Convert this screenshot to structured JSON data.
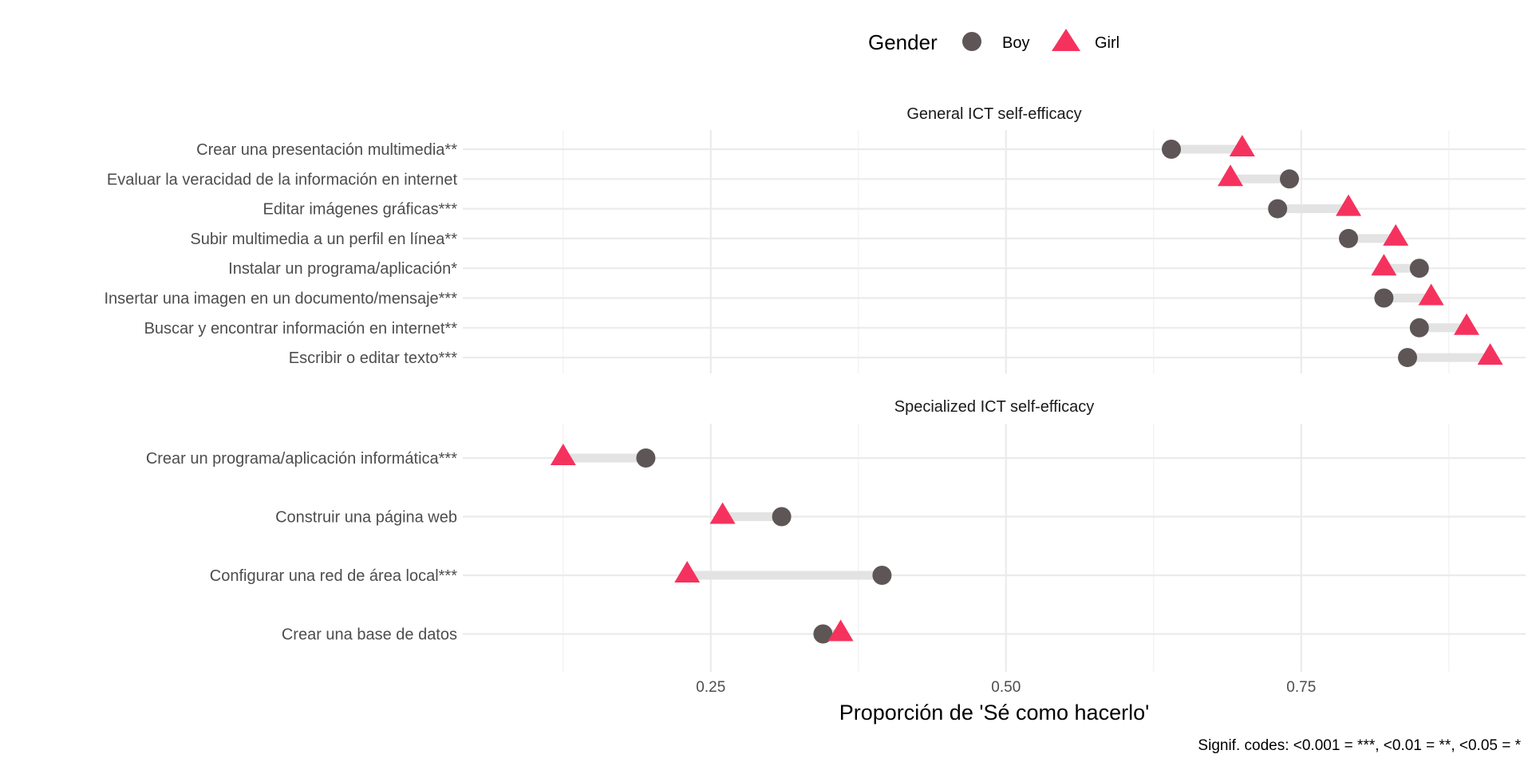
{
  "chart_data": {
    "type": "dumbbell",
    "xlabel": "Proporción de 'Sé como hacerlo'",
    "xticks": [
      0.25,
      0.5,
      0.75
    ],
    "xtick_labels": [
      "0.25",
      "0.50",
      "0.75"
    ],
    "xlim": [
      0.04,
      0.94
    ],
    "grid": true,
    "legend": {
      "title": "Gender",
      "position": "top",
      "entries": [
        {
          "name": "Boy",
          "shape": "circle",
          "color": "#5e5656"
        },
        {
          "name": "Girl",
          "shape": "triangle",
          "color": "#f5325e"
        }
      ]
    },
    "caption": "Signif. codes: <0.001 = ***, <0.01 = **, <0.05 = *",
    "panels": [
      {
        "title": "General ICT self-efficacy",
        "items": [
          {
            "label": "Crear una presentación multimedia**",
            "boy": 0.64,
            "girl": 0.7
          },
          {
            "label": "Evaluar la veracidad de la información en internet",
            "boy": 0.74,
            "girl": 0.69
          },
          {
            "label": "Editar imágenes gráficas***",
            "boy": 0.73,
            "girl": 0.79
          },
          {
            "label": "Subir multimedia a un perfil en línea**",
            "boy": 0.79,
            "girl": 0.83
          },
          {
            "label": "Instalar un programa/aplicación*",
            "boy": 0.85,
            "girl": 0.82
          },
          {
            "label": "Insertar una imagen en un documento/mensaje***",
            "boy": 0.82,
            "girl": 0.86
          },
          {
            "label": "Buscar y encontrar información en internet**",
            "boy": 0.85,
            "girl": 0.89
          },
          {
            "label": "Escribir o editar texto***",
            "boy": 0.84,
            "girl": 0.91
          }
        ]
      },
      {
        "title": "Specialized ICT self-efficacy",
        "items": [
          {
            "label": "Crear un programa/aplicación informática***",
            "boy": 0.195,
            "girl": 0.125
          },
          {
            "label": "Construir una página web",
            "boy": 0.31,
            "girl": 0.26
          },
          {
            "label": "Configurar una red de área local***",
            "boy": 0.395,
            "girl": 0.23
          },
          {
            "label": "Crear una base de datos",
            "boy": 0.345,
            "girl": 0.36
          }
        ]
      }
    ]
  }
}
